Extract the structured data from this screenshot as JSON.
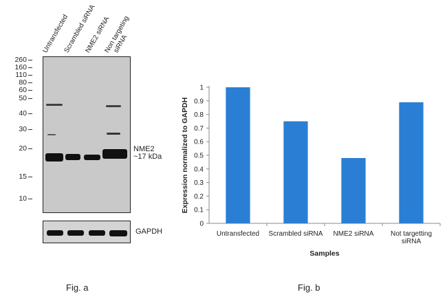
{
  "western_blot": {
    "lanes": [
      "Untransfected",
      "Scrambled siRNA",
      "NME2 siRNA",
      "Non targeting",
      "siRNA"
    ],
    "markers": [
      "260",
      "160",
      "110",
      "80",
      "60",
      "50",
      "40",
      "30",
      "20",
      "15",
      "10"
    ],
    "target_label": "NME2",
    "target_size": "~17 kDa",
    "loading_control": "GAPDH"
  },
  "captions": {
    "fig_a": "Fig. a",
    "fig_b": "Fig. b"
  },
  "chart_data": {
    "type": "bar",
    "categories": [
      "Untransfected",
      "Scrambled siRNA",
      "NME2 siRNA",
      "Not targetting siRNA"
    ],
    "category_lines": [
      [
        "Untransfected"
      ],
      [
        "Scrambled siRNA"
      ],
      [
        "NME2 siRNA"
      ],
      [
        "Not targetting",
        "siRNA"
      ]
    ],
    "values": [
      1.0,
      0.75,
      0.48,
      0.89
    ],
    "xlabel": "Samples",
    "ylabel": "Expression normalized to GAPDH",
    "ylim": [
      0,
      1
    ],
    "yticks": [
      "0",
      "0.1",
      "0.2",
      "0.3",
      "0.4",
      "0.5",
      "0.6",
      "0.7",
      "0.8",
      "0.9",
      "1"
    ],
    "bar_color": "#2a7fd4",
    "grid": false
  }
}
